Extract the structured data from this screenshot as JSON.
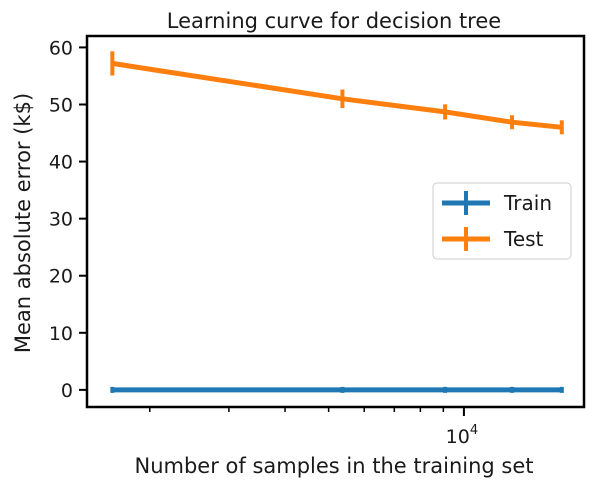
{
  "chart_data": {
    "type": "line",
    "title": "Learning curve for decision tree",
    "xlabel": "Number of samples in the training set",
    "ylabel": "Mean absolute error (k$)",
    "xscale": "log",
    "xlim": [
      1450,
      18500
    ],
    "ylim": [
      -3,
      62
    ],
    "yticks": [
      0,
      10,
      20,
      30,
      40,
      50,
      60
    ],
    "xticks_major": [
      {
        "value": 10000,
        "label": "10^4"
      }
    ],
    "xticks_minor": [
      2000,
      3000,
      4000,
      5000,
      6000,
      7000,
      8000,
      9000
    ],
    "legend_position": "center-right",
    "x": [
      1651,
      5366,
      9081,
      12796,
      16512
    ],
    "series": [
      {
        "name": "Train",
        "color": "#1f77b4",
        "values": [
          0,
          0,
          0,
          0,
          0
        ],
        "errors": [
          0,
          0,
          0,
          0,
          0
        ]
      },
      {
        "name": "Test",
        "color": "#ff7f0e",
        "values": [
          57.2,
          51.0,
          48.7,
          46.9,
          46.0
        ],
        "errors": [
          1.6,
          1.1,
          0.8,
          0.7,
          0.7
        ]
      }
    ]
  }
}
